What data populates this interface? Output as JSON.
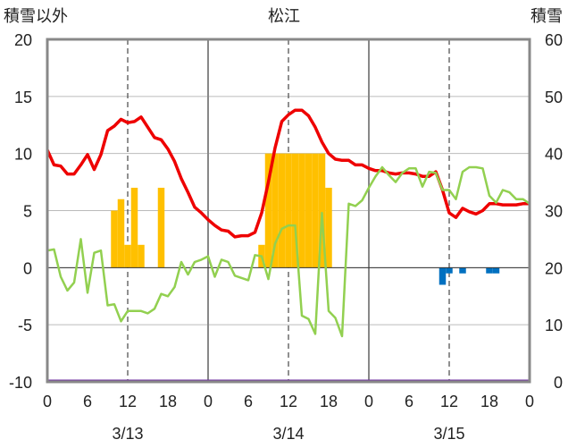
{
  "chart_data": {
    "type": "line",
    "title": "松江",
    "left_axis_label": "積雪以外",
    "right_axis_label": "積雪",
    "left_ylim": [
      -10,
      20
    ],
    "right_ylim": [
      0,
      60
    ],
    "left_ticks": [
      "20",
      "15",
      "10",
      "5",
      "0",
      "-5",
      "-10"
    ],
    "right_ticks": [
      "60",
      "50",
      "40",
      "30",
      "20",
      "10",
      "0"
    ],
    "hour_ticks": [
      "0",
      "6",
      "12",
      "18",
      "0",
      "6",
      "12",
      "18",
      "0",
      "6",
      "12",
      "18",
      "0"
    ],
    "day_labels": [
      "3/13",
      "3/14",
      "3/15"
    ],
    "x_range_hours": [
      0,
      72
    ],
    "colors": {
      "temperature": "#ee0000",
      "green_series": "#92d050",
      "bars": "#ffc000",
      "negative_bars": "#0070c0",
      "zero_line": "#7030a0"
    },
    "series": [
      {
        "values": [
          [
            0,
            10.3
          ],
          [
            1,
            9
          ],
          [
            2,
            8.9
          ],
          [
            3,
            8.2
          ],
          [
            4,
            8.2
          ],
          [
            5,
            9
          ],
          [
            6,
            9.9
          ],
          [
            7,
            8.6
          ],
          [
            8,
            9.9
          ],
          [
            9,
            12
          ],
          [
            10,
            12.4
          ],
          [
            11,
            13
          ],
          [
            12,
            12.7
          ],
          [
            13,
            12.8
          ],
          [
            14,
            13.2
          ],
          [
            15,
            12.3
          ],
          [
            16,
            11.4
          ],
          [
            17,
            11.2
          ],
          [
            18,
            10.4
          ],
          [
            19,
            9.3
          ],
          [
            20,
            7.8
          ],
          [
            21,
            6.6
          ],
          [
            22,
            5.3
          ],
          [
            23,
            4.8
          ],
          [
            24,
            4.2
          ],
          [
            25,
            3.7
          ],
          [
            26,
            3.3
          ],
          [
            27,
            3.2
          ],
          [
            28,
            2.7
          ],
          [
            29,
            2.8
          ],
          [
            30,
            2.8
          ],
          [
            31,
            3.1
          ],
          [
            32,
            4.8
          ],
          [
            33,
            7.5
          ],
          [
            34,
            10.5
          ],
          [
            35,
            12.8
          ],
          [
            36,
            13.4
          ],
          [
            37,
            13.8
          ],
          [
            38,
            13.8
          ],
          [
            39,
            13.3
          ],
          [
            40,
            12.3
          ],
          [
            41,
            11
          ],
          [
            42,
            10
          ],
          [
            43,
            9.5
          ],
          [
            44,
            9.4
          ],
          [
            45,
            9.4
          ],
          [
            46,
            9
          ],
          [
            47,
            9
          ],
          [
            48,
            8.7
          ],
          [
            49,
            8.5
          ],
          [
            50,
            8.5
          ],
          [
            51,
            8.3
          ],
          [
            52,
            8.2
          ],
          [
            53,
            8.3
          ],
          [
            54,
            8.3
          ],
          [
            55,
            8.2
          ],
          [
            56,
            8
          ],
          [
            57,
            8
          ],
          [
            58,
            8.4
          ],
          [
            59,
            6.8
          ],
          [
            60,
            4.8
          ],
          [
            61,
            4.4
          ],
          [
            62,
            5.2
          ],
          [
            63,
            4.9
          ],
          [
            64,
            4.7
          ],
          [
            65,
            5
          ],
          [
            66,
            5.6
          ],
          [
            67,
            5.6
          ],
          [
            68,
            5.5
          ],
          [
            69,
            5.5
          ],
          [
            70,
            5.5
          ],
          [
            71,
            5.6
          ],
          [
            72,
            5.6
          ]
        ]
      },
      {
        "values": [
          [
            0,
            1.5
          ],
          [
            1,
            1.6
          ],
          [
            2,
            -0.8
          ],
          [
            3,
            -2
          ],
          [
            4,
            -1.3
          ],
          [
            5,
            2.5
          ],
          [
            6,
            -2.2
          ],
          [
            7,
            1.3
          ],
          [
            8,
            1.5
          ],
          [
            9,
            -3.3
          ],
          [
            10,
            -3.2
          ],
          [
            11,
            -4.7
          ],
          [
            12,
            -3.8
          ],
          [
            13,
            -3.8
          ],
          [
            14,
            -3.8
          ],
          [
            15,
            -4
          ],
          [
            16,
            -3.6
          ],
          [
            17,
            -2.3
          ],
          [
            18,
            -2.5
          ],
          [
            19,
            -1.7
          ],
          [
            20,
            0.5
          ],
          [
            21,
            -0.6
          ],
          [
            22,
            0.5
          ],
          [
            23,
            0.7
          ],
          [
            24,
            1
          ],
          [
            25,
            -0.8
          ],
          [
            26,
            0.7
          ],
          [
            27,
            0.5
          ],
          [
            28,
            -0.7
          ],
          [
            30,
            -1.1
          ],
          [
            31,
            1.1
          ],
          [
            32,
            1
          ],
          [
            33,
            -1
          ],
          [
            34,
            2.1
          ],
          [
            35,
            3.4
          ],
          [
            36,
            3.7
          ],
          [
            37,
            3.7
          ],
          [
            38,
            -4.2
          ],
          [
            39,
            -4.5
          ],
          [
            40,
            -5.8
          ],
          [
            41,
            4.8
          ],
          [
            42,
            -3.8
          ],
          [
            43,
            -4.4
          ],
          [
            44,
            -6
          ],
          [
            45,
            5.6
          ],
          [
            46,
            5.4
          ],
          [
            47,
            5.9
          ],
          [
            48,
            7
          ],
          [
            49,
            8
          ],
          [
            50,
            8.8
          ],
          [
            51,
            8.1
          ],
          [
            52,
            7.5
          ],
          [
            53,
            8.3
          ],
          [
            54,
            8.7
          ],
          [
            55,
            8.7
          ],
          [
            56,
            7.1
          ],
          [
            57,
            8.4
          ],
          [
            58,
            8.3
          ],
          [
            59,
            6.8
          ],
          [
            60,
            6.8
          ],
          [
            61,
            6
          ],
          [
            62,
            8.4
          ],
          [
            63,
            8.8
          ],
          [
            64,
            8.8
          ],
          [
            65,
            8.7
          ],
          [
            66,
            6.3
          ],
          [
            67,
            5.7
          ],
          [
            68,
            6.8
          ],
          [
            69,
            6.6
          ],
          [
            70,
            6
          ],
          [
            71,
            6
          ],
          [
            72,
            5.6
          ]
        ]
      }
    ],
    "bars": [
      {
        "hour": 10,
        "value": 5
      },
      {
        "hour": 11,
        "value": 6
      },
      {
        "hour": 12,
        "value": 2
      },
      {
        "hour": 13,
        "value": 7
      },
      {
        "hour": 14,
        "value": 2
      },
      {
        "hour": 17,
        "value": 7
      },
      {
        "hour": 32,
        "value": 2
      },
      {
        "hour": 33,
        "value": 10
      },
      {
        "hour": 34,
        "value": 10
      },
      {
        "hour": 35,
        "value": 10
      },
      {
        "hour": 36,
        "value": 10
      },
      {
        "hour": 37,
        "value": 10
      },
      {
        "hour": 38,
        "value": 10
      },
      {
        "hour": 39,
        "value": 10
      },
      {
        "hour": 40,
        "value": 10
      },
      {
        "hour": 41,
        "value": 10
      },
      {
        "hour": 42,
        "value": 7
      },
      {
        "hour": 59,
        "value": -1.5
      },
      {
        "hour": 60,
        "value": -0.5
      },
      {
        "hour": 62,
        "value": -0.5
      },
      {
        "hour": 66,
        "value": -0.5
      },
      {
        "hour": 67,
        "value": -0.5
      }
    ]
  }
}
